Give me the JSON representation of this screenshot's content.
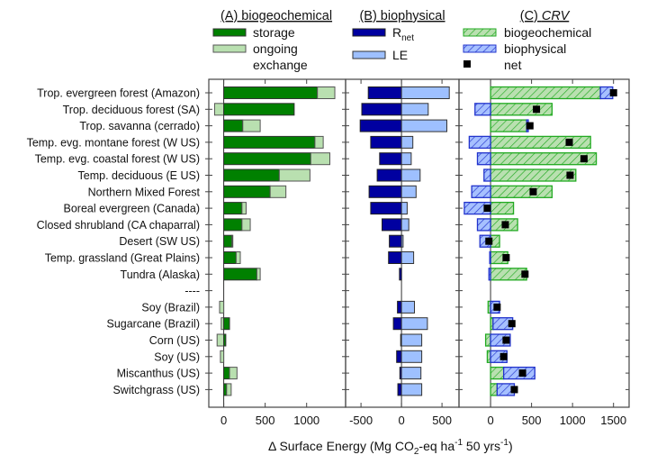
{
  "chart_data": {
    "type": "bar",
    "orientation": "horizontal",
    "xlabel": "Δ Surface Energy (Mg CO2-eq ha-1 50 yrs-1)",
    "xlabel_parts": {
      "prefix": "Δ Surface Energy (Mg CO",
      "sub": "2",
      "mid": "-eq ha",
      "sup1": "-1",
      "mid2": " 50 yrs",
      "sup2": "-1",
      "suffix": ")"
    },
    "categories": [
      "Trop. evergreen forest (Amazon)",
      "Trop. deciduous forest (SA)",
      "Trop. savanna (cerrado)",
      "Temp. evg. montane forest (W US)",
      "Temp. evg. coastal forest (W US)",
      "Temp. deciduous (E US)",
      "Northern Mixed Forest",
      "Boreal evergreen (Canada)",
      "Closed shrubland (CA chaparral)",
      "Desert (SW US)",
      "Temp. grassland (Great Plains)",
      "Tundra (Alaska)",
      "----",
      "Soy (Brazil)",
      "Sugarcane (Brazil)",
      "Corn (US)",
      "Soy (US)",
      "Miscanthus (US)",
      "Switchgrass (US)"
    ],
    "panels": [
      {
        "id": "A",
        "title": "(A) biogeochemical",
        "xlim": [
          -180,
          1470
        ],
        "ticks": [
          0,
          500,
          1000
        ],
        "tick_labels": [
          "0",
          "500",
          "1000"
        ],
        "stacked": true,
        "legend": [
          {
            "label": "storage",
            "color": "#008000",
            "key": "storage"
          },
          {
            "label": "ongoing",
            "label2": "exchange",
            "color": "#b9e0b0",
            "key": "ongoing"
          }
        ],
        "series": [
          {
            "name": "storage",
            "key": "storage",
            "color": "#008000",
            "values": [
              1130,
              850,
              230,
              1100,
              1050,
              670,
              560,
              220,
              220,
              100,
              150,
              400,
              null,
              0,
              70,
              25,
              0,
              70,
              35
            ]
          },
          {
            "name": "ongoing exchange",
            "key": "ongoing",
            "color": "#b9e0b0",
            "values": [
              210,
              -110,
              210,
              100,
              230,
              370,
              190,
              50,
              100,
              10,
              50,
              40,
              null,
              -50,
              -30,
              -80,
              -40,
              90,
              55
            ]
          }
        ]
      },
      {
        "id": "B",
        "title": "(B) biophysical",
        "xlim": [
          -690,
          710
        ],
        "ticks": [
          -500,
          0,
          500
        ],
        "tick_labels": [
          "-500",
          "0",
          "500"
        ],
        "stacked": false,
        "legend": [
          {
            "label": "R",
            "sub": "net",
            "color": "#0000a0",
            "key": "rnet"
          },
          {
            "label": "LE",
            "color": "#9ec0ff",
            "key": "le"
          }
        ],
        "series": [
          {
            "name": "Rnet",
            "key": "rnet",
            "color": "#0000a0",
            "values": [
              -410,
              -490,
              -510,
              -380,
              -270,
              -300,
              -400,
              -380,
              -240,
              -150,
              -160,
              -25,
              null,
              -50,
              -100,
              -10,
              -60,
              -20,
              -45
            ]
          },
          {
            "name": "LE",
            "key": "le",
            "color": "#9ec0ff",
            "values": [
              590,
              330,
              560,
              140,
              120,
              230,
              180,
              70,
              90,
              20,
              150,
              0,
              null,
              160,
              320,
              250,
              250,
              240,
              250
            ]
          }
        ]
      },
      {
        "id": "C",
        "title": "(C) CRV",
        "title_prefix": "(C) ",
        "title_italic": "CRV",
        "xlim": [
          -385,
          1690
        ],
        "ticks": [
          0,
          500,
          1000,
          1500
        ],
        "tick_labels": [
          "0",
          "500",
          "1000",
          "1500"
        ],
        "stacked": true,
        "legend": [
          {
            "label": "biogeochemical",
            "color": "#b9e0b0",
            "edge": "#22aa22",
            "key": "bio"
          },
          {
            "label": "biophysical",
            "color": "#a6c0ff",
            "edge": "#2233cc",
            "key": "phys"
          },
          {
            "label": "net",
            "color": "#000000",
            "key": "net"
          }
        ],
        "series": [
          {
            "name": "biogeochemical",
            "key": "bio",
            "color": "#b9e0b0",
            "edge": "#22aa22",
            "values": [
              1340,
              750,
              440,
              1220,
              1290,
              1040,
              750,
              280,
              330,
              110,
              210,
              440,
              null,
              -30,
              30,
              -60,
              -40,
              160,
              80
            ]
          },
          {
            "name": "biophysical",
            "key": "phys",
            "color": "#a6c0ff",
            "edge": "#2233cc",
            "values": [
              150,
              -190,
              20,
              -260,
              -160,
              -80,
              -230,
              -320,
              -160,
              -130,
              -10,
              -20,
              null,
              110,
              240,
              240,
              200,
              380,
              210
            ]
          },
          {
            "name": "net",
            "key": "net",
            "color": "#000000",
            "values": [
              1500,
              560,
              480,
              960,
              1140,
              970,
              520,
              -40,
              180,
              -20,
              190,
              420,
              null,
              80,
              260,
              190,
              160,
              390,
              290
            ]
          }
        ]
      }
    ]
  }
}
